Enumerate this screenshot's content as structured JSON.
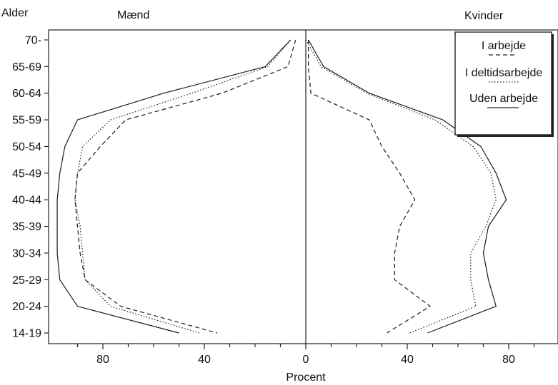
{
  "chart_data": {
    "type": "line",
    "title_left": "Mænd",
    "title_right": "Kvinder",
    "age_axis_label": "Alder",
    "xlabel": "Procent",
    "categories": [
      "70-",
      "65-69",
      "60-64",
      "55-59",
      "50-54",
      "45-49",
      "40-44",
      "35-39",
      "30-34",
      "25-29",
      "20-24",
      "14-19"
    ],
    "x_tick_labels": [
      "80",
      "40",
      "0",
      "40",
      "80"
    ],
    "x_ticks": [
      -80,
      -40,
      0,
      40,
      80
    ],
    "xlim": [
      -100,
      100
    ],
    "legend_placement": "top-right",
    "legend": [
      "I arbejde",
      "I deltidsarbejde",
      "Uden arbejde"
    ],
    "series": [
      {
        "name": "I arbejde",
        "style": "dashed",
        "men": [
          4,
          7,
          33,
          71,
          81,
          90,
          91,
          90,
          89,
          87,
          73,
          35
        ],
        "women": [
          1,
          1,
          2,
          25,
          30,
          37,
          43,
          37,
          35,
          35,
          49,
          32
        ]
      },
      {
        "name": "I deltidsarbejde",
        "style": "dotted",
        "men": [
          6,
          15,
          45,
          77,
          88,
          90,
          91,
          89,
          88,
          87,
          77,
          42
        ],
        "women": [
          0,
          6,
          24,
          51,
          66,
          73,
          75,
          71,
          65,
          65,
          67,
          41
        ]
      },
      {
        "name": "Uden arbejde",
        "style": "solid",
        "men": [
          6,
          16,
          56,
          90,
          95,
          97,
          98,
          98,
          98,
          97,
          90,
          50
        ],
        "women": [
          1,
          7,
          25,
          54,
          69,
          75,
          79,
          72,
          70,
          72,
          75,
          48
        ]
      }
    ]
  }
}
